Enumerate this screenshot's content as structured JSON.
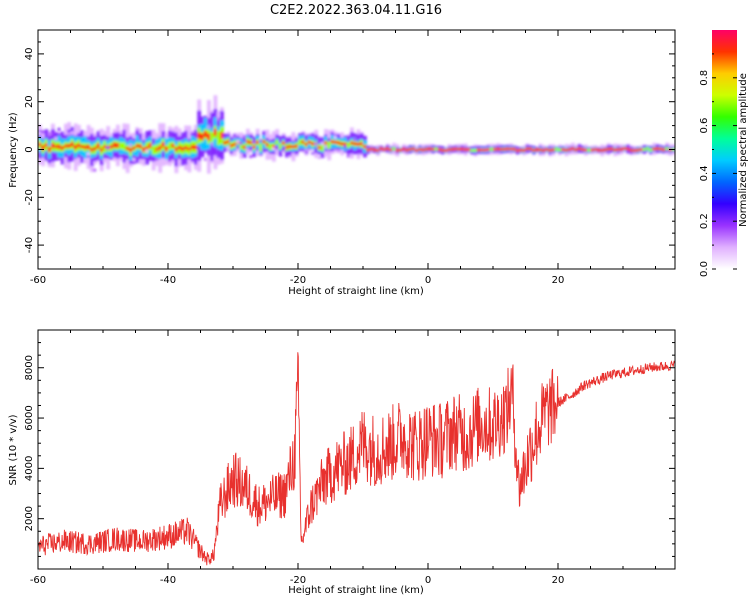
{
  "figure_title": "C2E2.2022.363.04.11.G16",
  "chart_data": [
    {
      "type": "heatmap",
      "xlabel": "Height of straight line (km)",
      "ylabel": "Frequency (Hz)",
      "xlim": [
        -60,
        38
      ],
      "ylim": [
        -50,
        50
      ],
      "xticks": [
        -60,
        -40,
        -20,
        0,
        20
      ],
      "yticks": [
        -40,
        -20,
        0,
        20,
        40
      ],
      "colorbar": {
        "label": "Normalized spectral amplitude",
        "range": [
          0,
          1
        ],
        "ticks": [
          0.0,
          0.2,
          0.4,
          0.6,
          0.8
        ],
        "colormap": [
          "#ffffff",
          "#e0b0ff",
          "#9933ff",
          "#3300ff",
          "#0066ff",
          "#00ccff",
          "#00ff99",
          "#33ff00",
          "#ccff00",
          "#ffcc00",
          "#ff3300",
          "#ff0066"
        ]
      },
      "features": [
        {
          "x_range": [
            -60,
            -36
          ],
          "center_frequency": 1,
          "spread": 8
        },
        {
          "x_range": [
            -36,
            -32
          ],
          "center_frequency": 6,
          "spread": 12
        },
        {
          "x_range": [
            -32,
            -10
          ],
          "center_frequency": 2,
          "spread": 5
        },
        {
          "x_range": [
            -10,
            38
          ],
          "center_frequency": 0,
          "spread": 2
        }
      ]
    },
    {
      "type": "line",
      "xlabel": "Height of straight line (km)",
      "ylabel": "SNR (10 * v/v)",
      "xlim": [
        -60,
        38
      ],
      "ylim": [
        0,
        9500
      ],
      "xticks": [
        -60,
        -40,
        -20,
        0,
        20
      ],
      "yticks": [
        2000,
        4000,
        6000,
        8000
      ],
      "series": [
        {
          "color": "#e8312e",
          "x": [
            -60,
            -56,
            -52,
            -48,
            -44,
            -40,
            -37,
            -35,
            -34,
            -33,
            -32,
            -30,
            -28,
            -26,
            -24,
            -22,
            -20.5,
            -20,
            -19.5,
            -18,
            -16,
            -14,
            -12,
            -10,
            -8,
            -6,
            -4,
            -2,
            0,
            2,
            4,
            6,
            8,
            10,
            12,
            13,
            14,
            16,
            18,
            20,
            22,
            24,
            26,
            28,
            30,
            32,
            34,
            36,
            38
          ],
          "y": [
            900,
            1100,
            1000,
            1200,
            1100,
            1300,
            1500,
            700,
            400,
            500,
            2500,
            3600,
            3200,
            2500,
            2800,
            3000,
            4500,
            7500,
            1000,
            2500,
            3500,
            4000,
            4300,
            5000,
            4700,
            4900,
            5300,
            4900,
            5200,
            5100,
            5500,
            5300,
            5800,
            5700,
            6200,
            7000,
            3200,
            5000,
            6200,
            6600,
            6900,
            7300,
            7500,
            7700,
            7800,
            7900,
            8000,
            8050,
            8100
          ]
        }
      ]
    }
  ]
}
